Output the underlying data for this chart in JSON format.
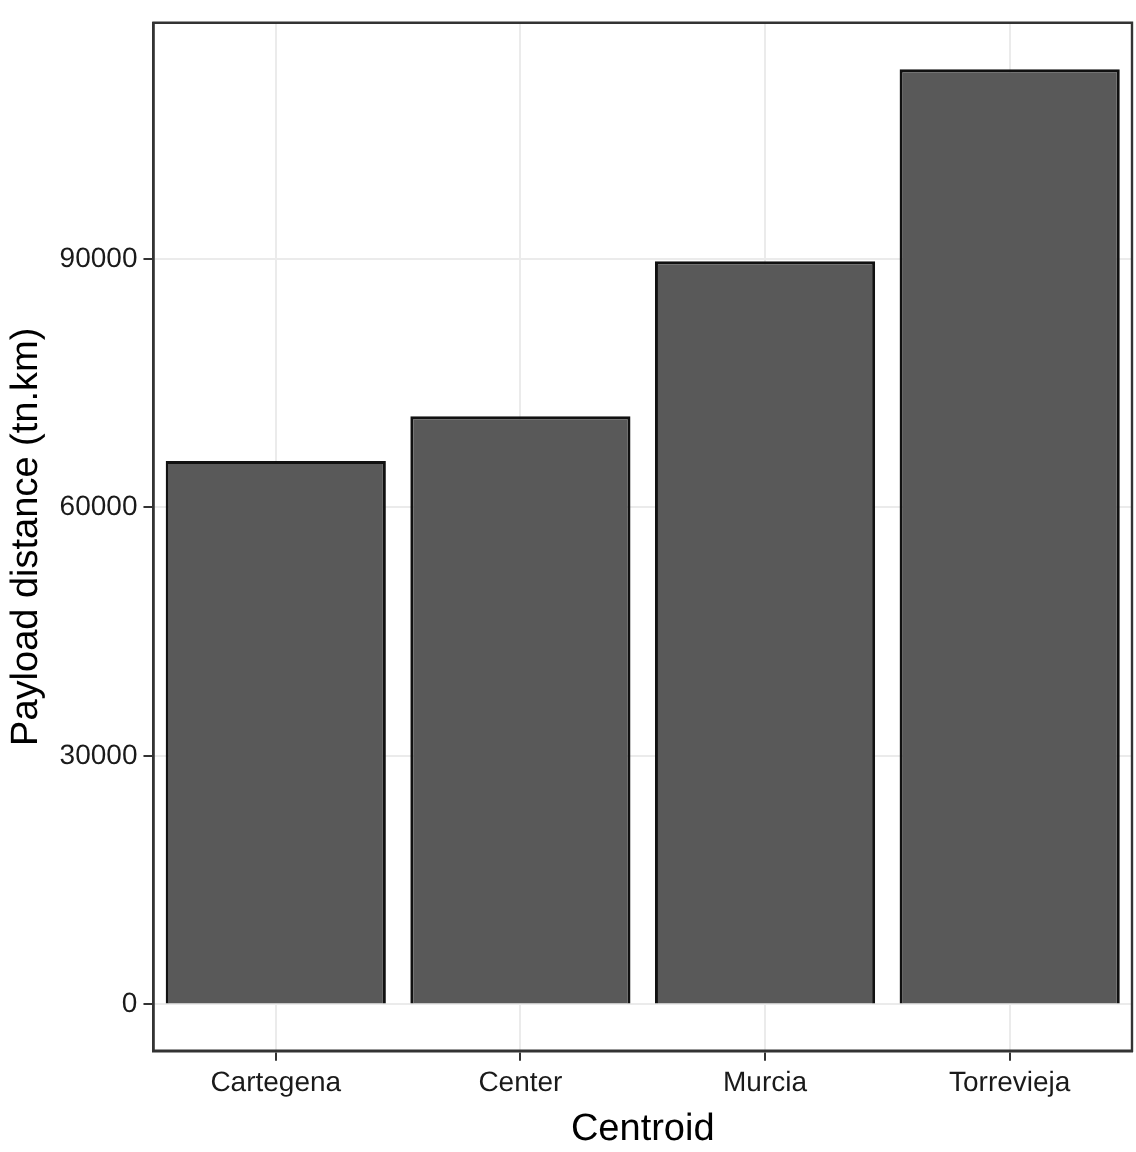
{
  "chart_data": {
    "type": "bar",
    "xlabel": "Centroid",
    "ylabel": "Payload distance (tn.km)",
    "categories": [
      "Cartegena",
      "Center",
      "Murcia",
      "Torrevieja"
    ],
    "values": [
      65600,
      71000,
      89700,
      112900
    ],
    "color": "#595959",
    "ylim": [
      -5600,
      118500
    ],
    "yticks": [
      0,
      30000,
      60000,
      90000
    ],
    "grid": true,
    "legend": false
  }
}
